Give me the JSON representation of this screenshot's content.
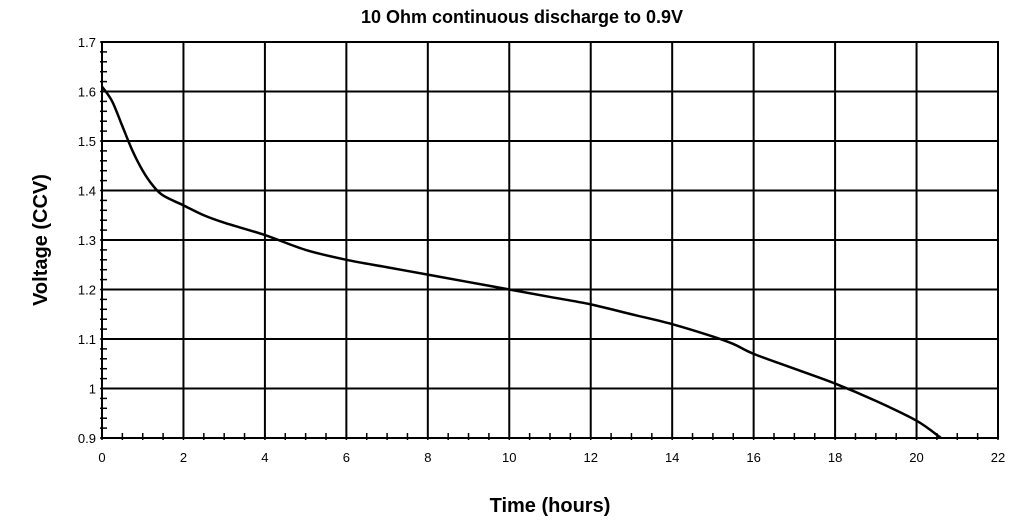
{
  "chart_data": {
    "type": "line",
    "title": "10 Ohm continuous discharge to 0.9V",
    "xlabel": "Time (hours)",
    "ylabel": "Voltage (CCV)",
    "xlim": [
      0,
      22
    ],
    "ylim": [
      0.9,
      1.7
    ],
    "xticks": [
      0,
      2,
      4,
      6,
      8,
      10,
      12,
      14,
      16,
      18,
      20,
      22
    ],
    "xtick_labels": [
      "0",
      "2",
      "4",
      "6",
      "8",
      "10",
      "12",
      "14",
      "16",
      "18",
      "20",
      "22"
    ],
    "yticks": [
      0.9,
      1.0,
      1.1,
      1.2,
      1.3,
      1.4,
      1.5,
      1.6,
      1.7
    ],
    "ytick_labels": [
      "0.9",
      "1",
      "1.1",
      "1.2",
      "1.3",
      "1.4",
      "1.5",
      "1.6",
      "1.7"
    ],
    "grid": true,
    "series": [
      {
        "x": [
          0,
          0.25,
          0.5,
          0.75,
          1.0,
          1.25,
          1.5,
          2.0,
          2.5,
          3.0,
          4.0,
          5.0,
          6.0,
          7.0,
          8.0,
          9.0,
          10.0,
          11.0,
          12.0,
          13.0,
          14.0,
          15.0,
          15.5,
          16.0,
          17.0,
          18.0,
          19.0,
          20.0,
          20.6
        ],
        "y": [
          1.61,
          1.58,
          1.53,
          1.48,
          1.44,
          1.41,
          1.39,
          1.37,
          1.35,
          1.335,
          1.31,
          1.28,
          1.26,
          1.245,
          1.23,
          1.215,
          1.2,
          1.185,
          1.17,
          1.15,
          1.13,
          1.105,
          1.09,
          1.07,
          1.04,
          1.01,
          0.975,
          0.935,
          0.9
        ],
        "color": "#000000"
      }
    ]
  }
}
